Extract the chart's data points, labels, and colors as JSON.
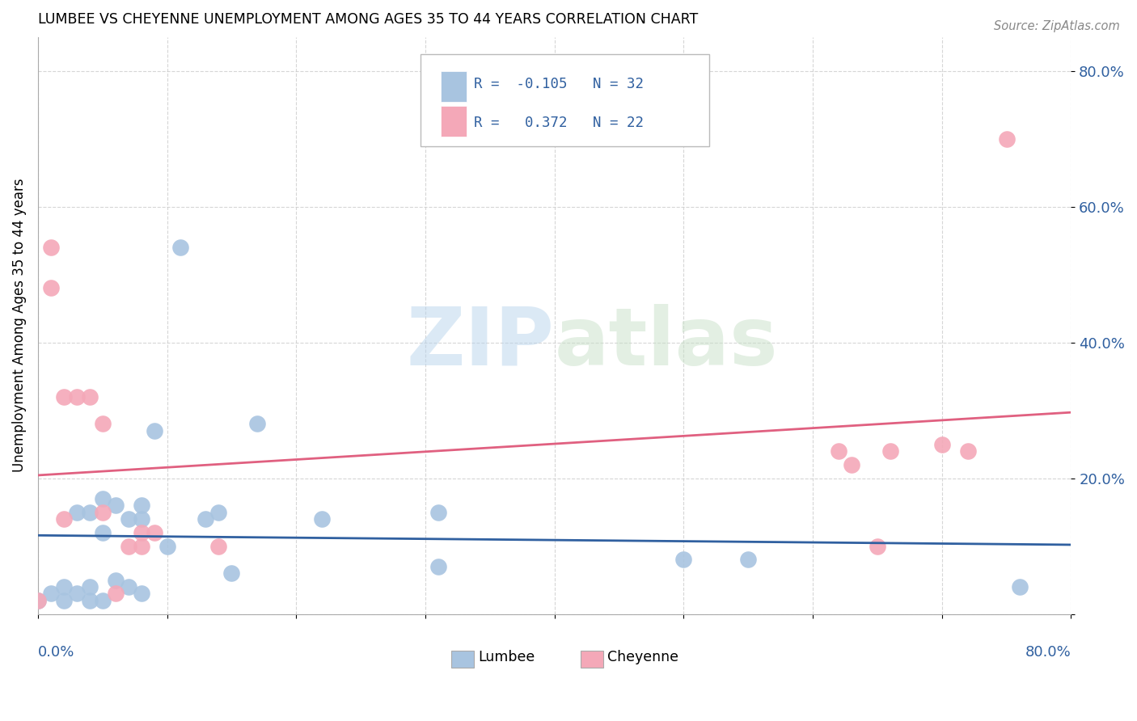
{
  "title": "LUMBEE VS CHEYENNE UNEMPLOYMENT AMONG AGES 35 TO 44 YEARS CORRELATION CHART",
  "source": "Source: ZipAtlas.com",
  "ylabel": "Unemployment Among Ages 35 to 44 years",
  "xlim": [
    0.0,
    0.8
  ],
  "ylim": [
    0.0,
    0.85
  ],
  "yticks": [
    0.0,
    0.2,
    0.4,
    0.6,
    0.8
  ],
  "ytick_labels": [
    "",
    "20.0%",
    "40.0%",
    "60.0%",
    "80.0%"
  ],
  "lumbee_R": -0.105,
  "lumbee_N": 32,
  "cheyenne_R": 0.372,
  "cheyenne_N": 22,
  "lumbee_color": "#a8c4e0",
  "cheyenne_color": "#f4a8b8",
  "lumbee_line_color": "#3060a0",
  "cheyenne_line_color": "#e06080",
  "watermark_zip": "ZIP",
  "watermark_atlas": "atlas",
  "lumbee_x": [
    0.0,
    0.01,
    0.02,
    0.02,
    0.03,
    0.03,
    0.04,
    0.04,
    0.04,
    0.05,
    0.05,
    0.05,
    0.06,
    0.06,
    0.07,
    0.07,
    0.08,
    0.08,
    0.08,
    0.09,
    0.1,
    0.11,
    0.13,
    0.14,
    0.15,
    0.17,
    0.22,
    0.31,
    0.31,
    0.5,
    0.55,
    0.76
  ],
  "lumbee_y": [
    0.02,
    0.03,
    0.02,
    0.04,
    0.03,
    0.15,
    0.02,
    0.04,
    0.15,
    0.02,
    0.12,
    0.17,
    0.05,
    0.16,
    0.04,
    0.14,
    0.03,
    0.14,
    0.16,
    0.27,
    0.1,
    0.54,
    0.14,
    0.15,
    0.06,
    0.28,
    0.14,
    0.07,
    0.15,
    0.08,
    0.08,
    0.04
  ],
  "cheyenne_x": [
    0.0,
    0.01,
    0.01,
    0.02,
    0.02,
    0.03,
    0.04,
    0.05,
    0.05,
    0.06,
    0.07,
    0.08,
    0.08,
    0.09,
    0.14,
    0.62,
    0.63,
    0.65,
    0.66,
    0.7,
    0.72,
    0.75
  ],
  "cheyenne_y": [
    0.02,
    0.54,
    0.48,
    0.32,
    0.14,
    0.32,
    0.32,
    0.15,
    0.28,
    0.03,
    0.1,
    0.1,
    0.12,
    0.12,
    0.1,
    0.24,
    0.22,
    0.1,
    0.24,
    0.25,
    0.24,
    0.7
  ]
}
